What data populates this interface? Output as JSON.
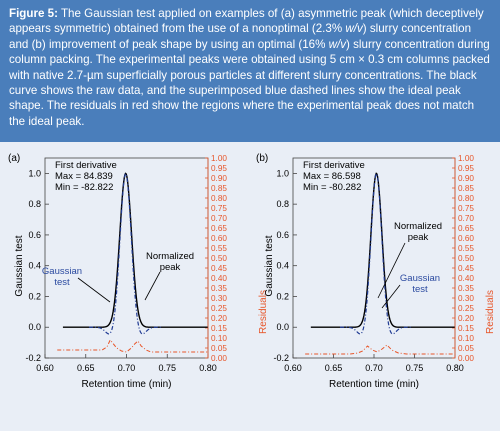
{
  "caption": {
    "figure_label": "Figure 5:",
    "part1": " The Gaussian test applied on examples of (a) asymmetric peak (which deceptively appears symmetric) obtained from the use of a nonoptimal (2.3% ",
    "unit1": "w/v",
    "part2": ") slurry concentration and (b) improvement of peak shape by using an optimal (16% ",
    "unit2": "w/v",
    "part3": ") slurry concentration during column packing. The experimental peaks were obtained using 5 cm × 0.3 cm columns packed with native 2.7-µm superficially porous particles at different slurry concentrations. The black curve shows the raw data, and the superimposed blue dashed lines show the ideal peak shape. The residuals in red show the regions where the experimental peak does not match the ideal peak."
  },
  "colors": {
    "caption_bg": "#4a7ebb",
    "chart_bg": "#e9eef6",
    "raw_data": "#000000",
    "ideal_peak": "#1f3a93",
    "residuals": "#e8562a",
    "annotation_blue": "#2b4aa0"
  },
  "chart_data": [
    {
      "panel_label": "(a)",
      "type": "line",
      "xlabel": "Retention time (min)",
      "ylabel_left": "Gaussian test",
      "ylabel_right": "Residuals",
      "x_ticks": [
        "0.60",
        "0.65",
        "0.70",
        "0.75",
        "0.80"
      ],
      "y_left_ticks": [
        "-0.2",
        "0.0",
        "0.2",
        "0.4",
        "0.6",
        "0.8",
        "1.0"
      ],
      "y_right_ticks": [
        "0.00",
        "0.05",
        "0.10",
        "0.15",
        "0.20",
        "0.25",
        "0.30",
        "0.35",
        "0.40",
        "0.45",
        "0.50",
        "0.55",
        "0.60",
        "0.65",
        "0.70",
        "0.75",
        "0.80",
        "0.85",
        "0.90",
        "0.95",
        "1.00"
      ],
      "xlim": [
        0.6,
        0.8
      ],
      "ylim_left": [
        -0.2,
        1.1
      ],
      "ylim_right": [
        0.0,
        1.0
      ],
      "stats": {
        "title": "First derivative",
        "max": "Max = 84.839",
        "min": "Min = -82.822"
      },
      "annotations": {
        "gaussian_test": [
          "Gaussian",
          "test"
        ],
        "normalized_peak": [
          "Normalized",
          "peak"
        ]
      },
      "peak": {
        "center": 0.699,
        "sigma": 0.0072,
        "baseline_start": 0.622,
        "baseline_end": 0.8
      },
      "ideal": {
        "center": 0.699,
        "sigma": 0.0068,
        "min_value": -0.06
      },
      "residuals": {
        "x": [
          0.615,
          0.67,
          0.676,
          0.68,
          0.684,
          0.688,
          0.694,
          0.7,
          0.706,
          0.71,
          0.714,
          0.718,
          0.724,
          0.73,
          0.74,
          0.75,
          0.8
        ],
        "y": [
          0.04,
          0.04,
          0.055,
          0.09,
          0.07,
          0.05,
          0.035,
          0.03,
          0.05,
          0.07,
          0.085,
          0.06,
          0.04,
          0.03,
          0.03,
          0.03,
          0.03
        ]
      }
    },
    {
      "panel_label": "(b)",
      "type": "line",
      "xlabel": "Retention time (min)",
      "ylabel_left": "Gaussian test",
      "ylabel_right": "Residuals",
      "x_ticks": [
        "0.60",
        "0.65",
        "0.70",
        "0.75",
        "0.80"
      ],
      "y_left_ticks": [
        "-0.2",
        "0.0",
        "0.2",
        "0.4",
        "0.6",
        "0.8",
        "1.0"
      ],
      "y_right_ticks": [
        "0.00",
        "0.05",
        "0.10",
        "0.15",
        "0.20",
        "0.25",
        "0.30",
        "0.35",
        "0.40",
        "0.45",
        "0.50",
        "0.55",
        "0.60",
        "0.65",
        "0.70",
        "0.75",
        "0.80",
        "0.85",
        "0.90",
        "0.95",
        "1.00"
      ],
      "xlim": [
        0.6,
        0.8
      ],
      "ylim_left": [
        -0.2,
        1.1
      ],
      "ylim_right": [
        0.0,
        1.0
      ],
      "stats": {
        "title": "First derivative",
        "max": "Max = 86.598",
        "min": "Min = -80.282"
      },
      "annotations": {
        "normalized_peak": [
          "Normalized",
          "peak"
        ],
        "gaussian_test": [
          "Gaussian",
          "test"
        ]
      },
      "peak": {
        "center": 0.703,
        "sigma": 0.0068,
        "baseline_start": 0.622,
        "baseline_end": 0.8
      },
      "ideal": {
        "center": 0.703,
        "sigma": 0.0066,
        "min_value": -0.06
      },
      "residuals": {
        "x": [
          0.615,
          0.67,
          0.68,
          0.686,
          0.692,
          0.698,
          0.704,
          0.71,
          0.716,
          0.722,
          0.73,
          0.74,
          0.8
        ],
        "y": [
          0.02,
          0.02,
          0.025,
          0.035,
          0.06,
          0.04,
          0.03,
          0.045,
          0.065,
          0.04,
          0.025,
          0.02,
          0.02
        ]
      }
    }
  ]
}
